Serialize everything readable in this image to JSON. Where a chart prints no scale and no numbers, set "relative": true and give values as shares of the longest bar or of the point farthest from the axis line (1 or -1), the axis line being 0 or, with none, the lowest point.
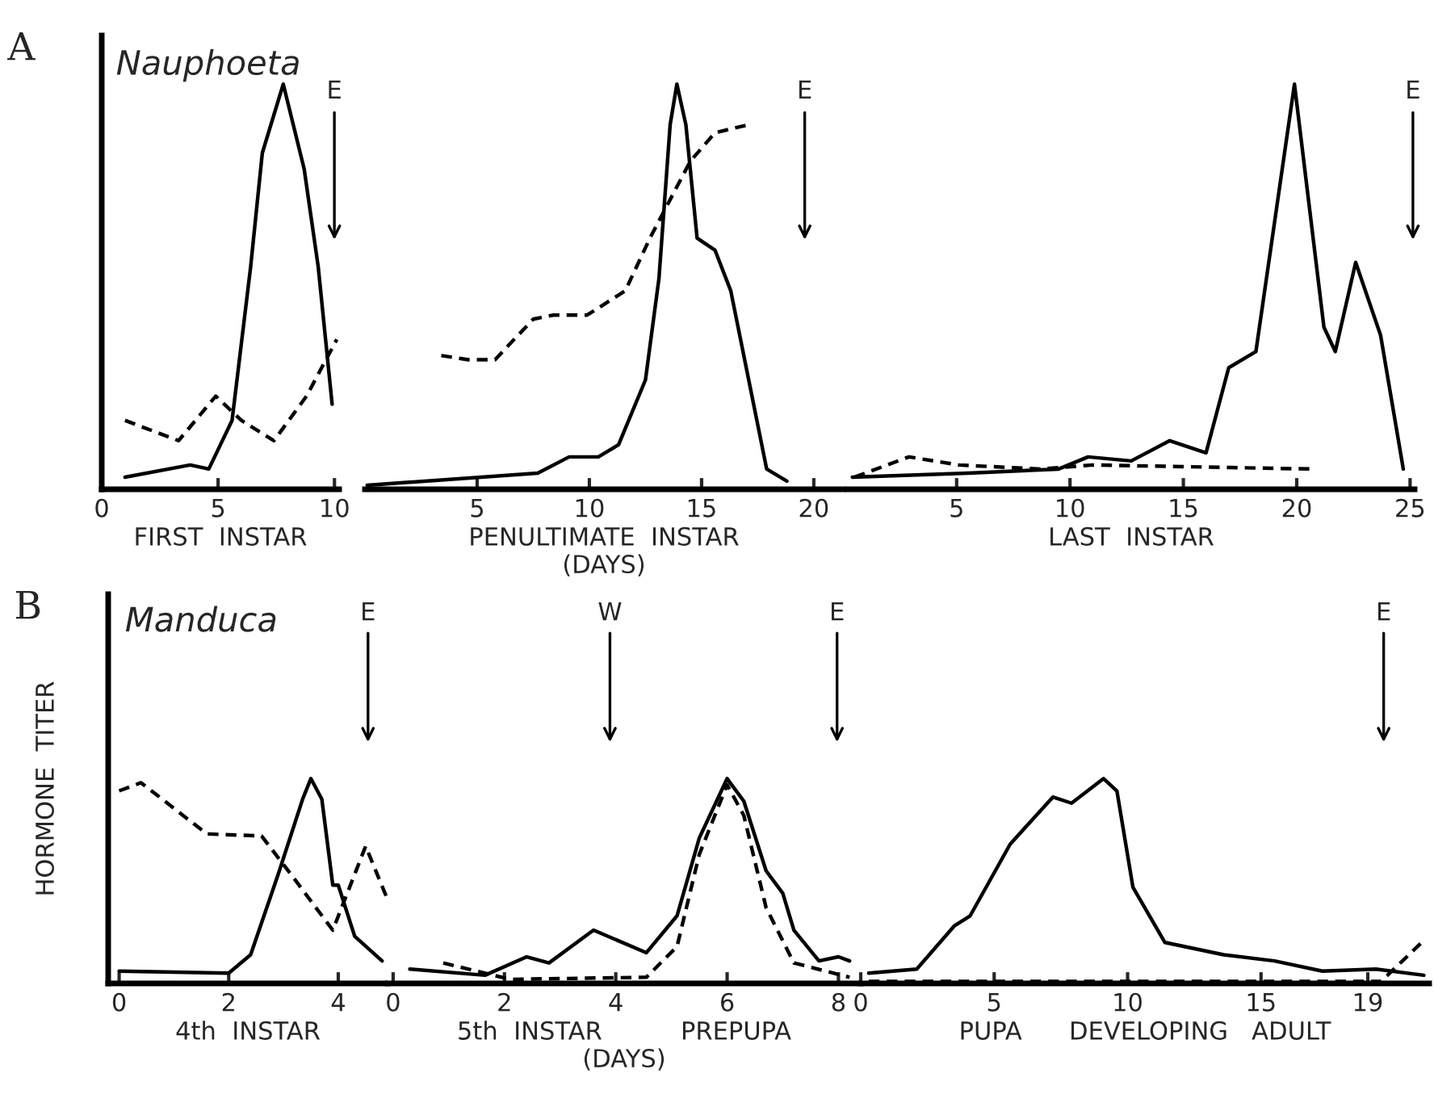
{
  "chart_data": [
    {
      "type": "line",
      "relative": true,
      "title": "Nauphoeta",
      "xlabel": "FIRST  INSTAR",
      "xlim": [
        0,
        10.2
      ],
      "xticks": [
        0,
        5,
        10
      ],
      "tick_labels": "x",
      "annotations": [
        "A",
        "E"
      ],
      "series": [
        {
          "color": "#000000",
          "line_style": "solid",
          "x": [
            1.0,
            3.8,
            4.6,
            5.6,
            6.4,
            6.9,
            7.8,
            8.7,
            9.3,
            9.9
          ],
          "values": [
            0.03,
            0.06,
            0.05,
            0.17,
            0.55,
            0.83,
            1,
            0.79,
            0.55,
            0.21
          ]
        },
        {
          "color": "#000000",
          "line_style": "dashed",
          "x": [
            1.0,
            3.3,
            4.9,
            6.0,
            7.4,
            8.8,
            10.1
          ],
          "values": [
            0.17,
            0.12,
            0.23,
            0.17,
            0.12,
            0.23,
            0.37
          ]
        }
      ]
    },
    {
      "type": "line",
      "relative": true,
      "xlabel": "PENULTIMATE  INSTAR\n(DAYS)",
      "xlim": [
        0,
        21.3
      ],
      "xticks": [
        5,
        10,
        15,
        20
      ],
      "tick_labels": "x",
      "annotations": [
        "E"
      ],
      "series": [
        {
          "color": "#000000",
          "line_style": "solid",
          "x": [
            0.1,
            7.7,
            9.1,
            10.4,
            11.3,
            12.5,
            13.1,
            13.6,
            13.9,
            14.3,
            14.8,
            15.6,
            16.3,
            17.1,
            17.9,
            18.8
          ],
          "values": [
            0.01,
            0.04,
            0.08,
            0.08,
            0.11,
            0.27,
            0.52,
            0.9,
            1,
            0.9,
            0.62,
            0.59,
            0.49,
            0.27,
            0.05,
            0.02
          ]
        },
        {
          "color": "#000000",
          "line_style": "dashed",
          "x": [
            3.4,
            4.6,
            5.8,
            7.5,
            8.4,
            9.9,
            11.6,
            12.7,
            14.5,
            15.6,
            17.1
          ],
          "values": [
            0.33,
            0.32,
            0.32,
            0.42,
            0.43,
            0.43,
            0.49,
            0.62,
            0.81,
            0.88,
            0.9
          ]
        }
      ]
    },
    {
      "type": "line",
      "relative": true,
      "xlabel": "LAST  INSTAR",
      "xlim": [
        0.2,
        25.2
      ],
      "xticks": [
        5,
        10,
        15,
        20,
        25
      ],
      "tick_labels": "x",
      "annotations": [
        "E"
      ],
      "series": [
        {
          "color": "#000000",
          "line_style": "solid",
          "x": [
            0.4,
            5.5,
            9.5,
            10.8,
            12.7,
            14.4,
            16.0,
            17.0,
            18.2,
            19.9,
            21.2,
            21.7,
            22.6,
            23.7,
            24.7
          ],
          "values": [
            0.03,
            0.04,
            0.05,
            0.08,
            0.07,
            0.12,
            0.09,
            0.3,
            0.34,
            1,
            0.4,
            0.34,
            0.56,
            0.38,
            0.05
          ]
        },
        {
          "color": "#000000",
          "line_style": "dashed",
          "x": [
            0.5,
            2.9,
            5.1,
            8.7,
            11.0,
            20.7
          ],
          "values": [
            0.03,
            0.08,
            0.06,
            0.05,
            0.06,
            0.05
          ]
        }
      ]
    },
    {
      "type": "line",
      "relative": true,
      "title": "Manduca",
      "ylabel": "HORMONE  TITER",
      "xlabel": "4th  INSTAR",
      "xlim": [
        -0.2,
        4.9
      ],
      "xticks": [
        0,
        2,
        4
      ],
      "tick_labels": "x",
      "annotations": [
        "B",
        "E"
      ],
      "series": [
        {
          "color": "#000000",
          "line_style": "solid",
          "x": [
            0.0,
            2.0,
            2.4,
            2.9,
            3.35,
            3.5,
            3.7,
            3.9,
            4.0,
            4.3,
            4.8
          ],
          "values": [
            0.06,
            0.05,
            0.14,
            0.53,
            0.9,
            1,
            0.9,
            0.48,
            0.48,
            0.23,
            0.11
          ]
        },
        {
          "color": "#000000",
          "line_style": "dashed",
          "x": [
            0.0,
            0.4,
            1.6,
            2.6,
            3.2,
            3.9,
            4.5,
            4.9
          ],
          "values": [
            0.94,
            0.98,
            0.73,
            0.72,
            0.51,
            0.26,
            0.67,
            0.41
          ]
        }
      ]
    },
    {
      "type": "line",
      "relative": true,
      "xlabel": "5th  INSTAR          PREPUPA\n(DAYS)",
      "xlim": [
        -0.1,
        8.4
      ],
      "xticks": [
        0,
        2,
        4,
        6,
        8
      ],
      "tick_labels": "x",
      "annotations": [
        "W",
        "E"
      ],
      "series": [
        {
          "color": "#000000",
          "line_style": "solid",
          "x": [
            0.3,
            1.65,
            2.4,
            2.8,
            3.6,
            4.55,
            5.1,
            5.5,
            6.0,
            6.3,
            6.7,
            7.0,
            7.2,
            7.65,
            8.0,
            8.2
          ],
          "values": [
            0.07,
            0.04,
            0.13,
            0.1,
            0.26,
            0.15,
            0.33,
            0.71,
            1,
            0.89,
            0.55,
            0.44,
            0.26,
            0.11,
            0.13,
            0.11
          ]
        },
        {
          "color": "#000000",
          "line_style": "dashed",
          "x": [
            0.9,
            2.1,
            4.55,
            5.1,
            5.5,
            6.0,
            6.3,
            6.7,
            7.2,
            8.2
          ],
          "values": [
            0.1,
            0.02,
            0.03,
            0.18,
            0.63,
            0.97,
            0.82,
            0.37,
            0.1,
            0.03
          ]
        }
      ]
    },
    {
      "type": "line",
      "relative": true,
      "xlabel": "PUPA      DEVELOPING   ADULT",
      "xlim": [
        0,
        21.3
      ],
      "xticks": [
        0,
        5,
        10,
        15,
        19
      ],
      "tick_labels": "x",
      "annotations": [
        "E"
      ],
      "series": [
        {
          "color": "#000000",
          "line_style": "solid",
          "x": [
            0.3,
            2.1,
            3.5,
            4.1,
            5.6,
            7.2,
            7.9,
            9.1,
            9.6,
            10.2,
            11.4,
            13.6,
            15.5,
            17.3,
            19.3,
            21.1
          ],
          "values": [
            0.05,
            0.07,
            0.28,
            0.33,
            0.68,
            0.91,
            0.88,
            1,
            0.94,
            0.47,
            0.2,
            0.14,
            0.11,
            0.06,
            0.07,
            0.04
          ]
        },
        {
          "color": "#000000",
          "line_style": "dashed",
          "x": [
            0.3,
            19.5,
            20.3,
            21.1
          ],
          "values": [
            0.01,
            0.01,
            0.11,
            0.21
          ]
        }
      ]
    }
  ]
}
